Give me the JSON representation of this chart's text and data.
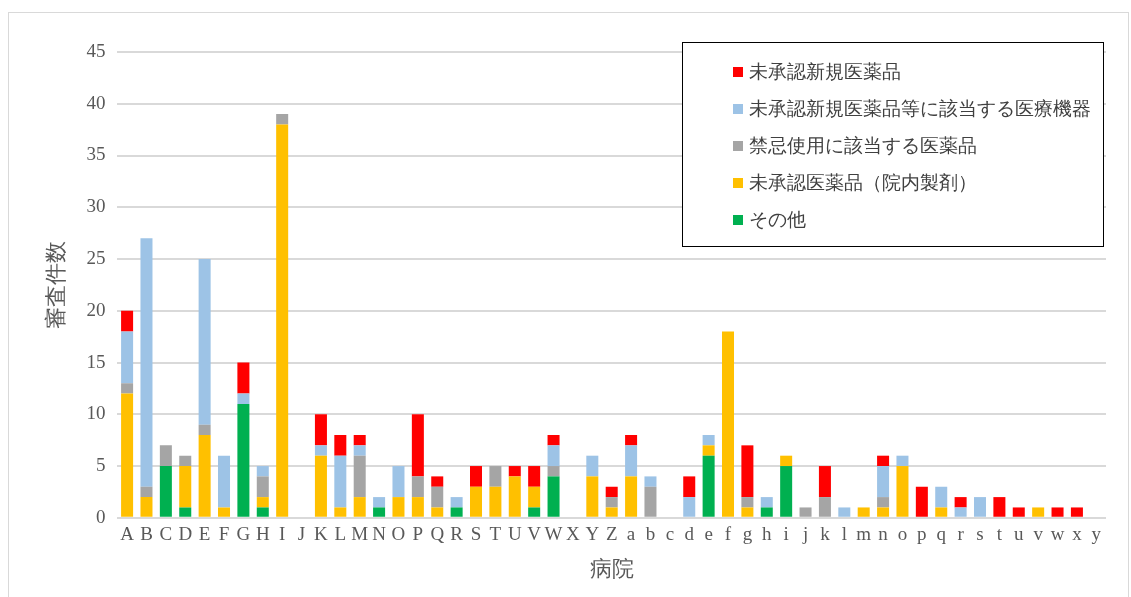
{
  "chart_data": {
    "type": "bar",
    "stacked": true,
    "xlabel": "病院",
    "ylabel": "審査件数",
    "categories": [
      "A",
      "B",
      "C",
      "D",
      "E",
      "F",
      "G",
      "H",
      "I",
      "J",
      "K",
      "L",
      "M",
      "N",
      "O",
      "P",
      "Q",
      "R",
      "S",
      "T",
      "U",
      "V",
      "W",
      "X",
      "Y",
      "Z",
      "a",
      "b",
      "c",
      "d",
      "e",
      "f",
      "g",
      "h",
      "i",
      "j",
      "k",
      "l",
      "m",
      "n",
      "o",
      "p",
      "q",
      "r",
      "s",
      "t",
      "u",
      "v",
      "w",
      "x",
      "y"
    ],
    "series": [
      {
        "name": "その他",
        "color": "#00b050",
        "values": [
          0,
          0,
          5,
          1,
          0,
          0,
          11,
          1,
          0,
          0,
          0,
          0,
          0,
          1,
          0,
          0,
          0,
          1,
          0,
          0,
          0,
          1,
          4,
          0,
          0,
          0,
          0,
          0,
          0,
          0,
          6,
          0,
          0,
          1,
          5,
          0,
          0,
          0,
          0,
          0,
          0,
          0,
          0,
          0,
          0,
          0,
          0,
          0,
          0,
          0,
          0
        ]
      },
      {
        "name": "未承認医薬品（院内製剤）",
        "color": "#ffc000",
        "values": [
          12,
          2,
          0,
          4,
          8,
          1,
          0,
          1,
          38,
          0,
          6,
          1,
          2,
          0,
          2,
          2,
          1,
          0,
          3,
          3,
          4,
          2,
          0,
          0,
          4,
          1,
          4,
          0,
          0,
          0,
          1,
          18,
          1,
          0,
          1,
          0,
          0,
          0,
          1,
          1,
          5,
          0,
          1,
          0,
          0,
          0,
          0,
          1,
          0,
          0,
          0
        ]
      },
      {
        "name": "禁忌使用に該当する医薬品",
        "color": "#a5a5a5",
        "values": [
          1,
          1,
          2,
          1,
          1,
          0,
          0,
          2,
          1,
          0,
          0,
          0,
          4,
          0,
          0,
          2,
          2,
          0,
          0,
          2,
          0,
          0,
          1,
          0,
          0,
          1,
          0,
          3,
          0,
          0,
          0,
          0,
          1,
          0,
          0,
          1,
          2,
          0,
          0,
          1,
          0,
          0,
          0,
          0,
          0,
          0,
          0,
          0,
          0,
          0,
          0
        ]
      },
      {
        "name": "未承認新規医薬品等に該当する医療機器",
        "color": "#9dc3e6",
        "values": [
          5,
          24,
          0,
          0,
          16,
          5,
          1,
          1,
          0,
          0,
          1,
          5,
          1,
          1,
          3,
          0,
          0,
          1,
          0,
          0,
          0,
          0,
          2,
          0,
          2,
          0,
          3,
          1,
          0,
          2,
          1,
          0,
          0,
          1,
          0,
          0,
          0,
          1,
          0,
          3,
          1,
          0,
          2,
          1,
          2,
          0,
          0,
          0,
          0,
          0,
          0
        ]
      },
      {
        "name": "未承認新規医薬品",
        "color": "#ff0000",
        "values": [
          2,
          0,
          0,
          0,
          0,
          0,
          3,
          0,
          0,
          0,
          3,
          2,
          1,
          0,
          0,
          6,
          1,
          0,
          2,
          0,
          1,
          2,
          1,
          0,
          0,
          1,
          1,
          0,
          0,
          2,
          0,
          0,
          5,
          0,
          0,
          0,
          3,
          0,
          0,
          1,
          0,
          3,
          0,
          1,
          0,
          2,
          1,
          0,
          1,
          1,
          0
        ]
      }
    ],
    "ylim": [
      0,
      45
    ],
    "yticks": [
      0,
      5,
      10,
      15,
      20,
      25,
      30,
      35,
      40,
      45
    ],
    "grid": "y",
    "legend": "top right"
  }
}
